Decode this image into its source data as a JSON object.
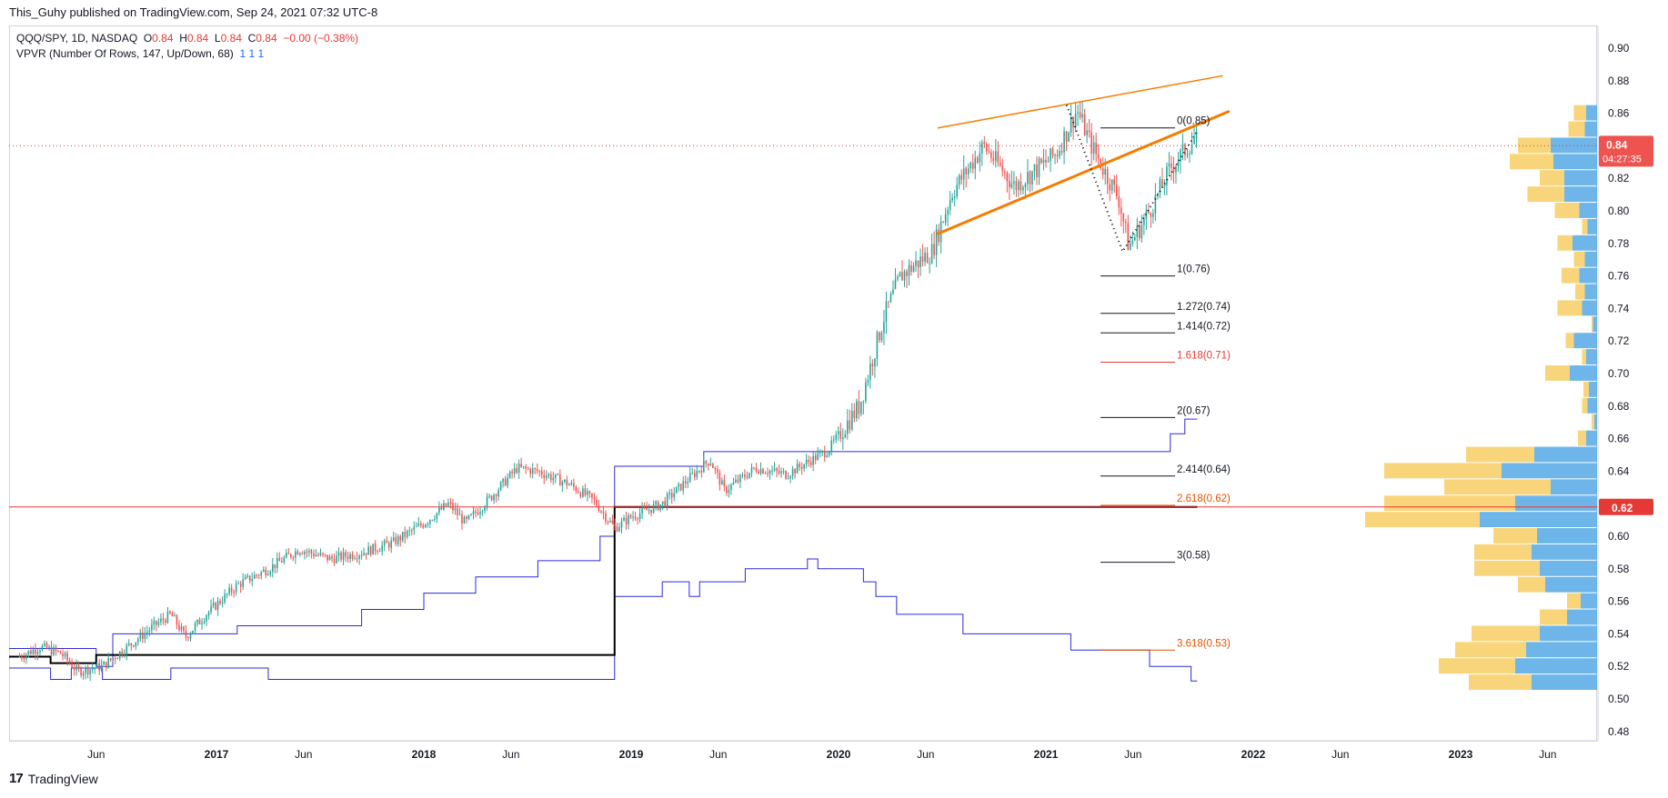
{
  "header": {
    "published": "This_Guhy published on TradingView.com, Sep 24, 2021 07:32 UTC-8"
  },
  "legend": {
    "symbol": "QQQ/SPY, 1D, NASDAQ",
    "o_label": "O",
    "o": "0.84",
    "h_label": "H",
    "h": "0.84",
    "l_label": "L",
    "l": "0.84",
    "c_label": "C",
    "c": "0.84",
    "change": "−0.00 (−0.38%)",
    "indicator": "VPVR (Number Of Rows, 147, Up/Down, 68)",
    "ind_values": "1  1  1"
  },
  "footer": {
    "logo": "17",
    "brand": "TradingView"
  },
  "colors": {
    "up": "#26a69a",
    "down": "#ef5350",
    "vol_up": "#5eaee8",
    "vol_down": "#f7d06c",
    "trend": "#f57c00",
    "stepline": "#2b2bd9",
    "hline": "#e53935"
  },
  "chart_data": {
    "type": "line",
    "symbol": "QQQ/SPY",
    "ylim": [
      0.47,
      0.91
    ],
    "y_ticks": [
      "0.90",
      "0.88",
      "0.86",
      "0.84",
      "0.82",
      "0.80",
      "0.78",
      "0.76",
      "0.74",
      "0.72",
      "0.70",
      "0.68",
      "0.66",
      "0.64",
      "0.62",
      "0.60",
      "0.58",
      "0.56",
      "0.54",
      "0.52",
      "0.50",
      "0.48"
    ],
    "x_ticks": [
      {
        "label": "Jun",
        "t": 2016.42
      },
      {
        "label": "2017",
        "t": 2017.0
      },
      {
        "label": "Jun",
        "t": 2017.42
      },
      {
        "label": "2018",
        "t": 2018.0
      },
      {
        "label": "Jun",
        "t": 2018.42
      },
      {
        "label": "2019",
        "t": 2019.0
      },
      {
        "label": "Jun",
        "t": 2019.42
      },
      {
        "label": "2020",
        "t": 2020.0
      },
      {
        "label": "Jun",
        "t": 2020.42
      },
      {
        "label": "2021",
        "t": 2021.0
      },
      {
        "label": "Jun",
        "t": 2021.42
      },
      {
        "label": "2022",
        "t": 2022.0
      },
      {
        "label": "Jun",
        "t": 2022.42
      },
      {
        "label": "2023",
        "t": 2023.0
      },
      {
        "label": "Jun",
        "t": 2023.42
      }
    ],
    "price_path": [
      [
        2016.05,
        0.526
      ],
      [
        2016.15,
        0.532
      ],
      [
        2016.25,
        0.528
      ],
      [
        2016.33,
        0.517
      ],
      [
        2016.45,
        0.52
      ],
      [
        2016.55,
        0.53
      ],
      [
        2016.7,
        0.545
      ],
      [
        2016.78,
        0.552
      ],
      [
        2016.85,
        0.538
      ],
      [
        2016.95,
        0.552
      ],
      [
        2017.1,
        0.57
      ],
      [
        2017.25,
        0.58
      ],
      [
        2017.4,
        0.592
      ],
      [
        2017.55,
        0.586
      ],
      [
        2017.7,
        0.59
      ],
      [
        2017.85,
        0.596
      ],
      [
        2018.0,
        0.608
      ],
      [
        2018.12,
        0.62
      ],
      [
        2018.2,
        0.608
      ],
      [
        2018.33,
        0.625
      ],
      [
        2018.45,
        0.642
      ],
      [
        2018.55,
        0.64
      ],
      [
        2018.7,
        0.632
      ],
      [
        2018.82,
        0.622
      ],
      [
        2018.92,
        0.605
      ],
      [
        2019.0,
        0.612
      ],
      [
        2019.15,
        0.62
      ],
      [
        2019.3,
        0.638
      ],
      [
        2019.38,
        0.647
      ],
      [
        2019.45,
        0.628
      ],
      [
        2019.6,
        0.642
      ],
      [
        2019.75,
        0.638
      ],
      [
        2019.95,
        0.653
      ],
      [
        2020.1,
        0.68
      ],
      [
        2020.22,
        0.735
      ],
      [
        2020.3,
        0.76
      ],
      [
        2020.45,
        0.775
      ],
      [
        2020.55,
        0.812
      ],
      [
        2020.7,
        0.84
      ],
      [
        2020.85,
        0.815
      ],
      [
        2021.05,
        0.835
      ],
      [
        2021.15,
        0.862
      ],
      [
        2021.22,
        0.84
      ],
      [
        2021.35,
        0.808
      ],
      [
        2021.4,
        0.778
      ],
      [
        2021.5,
        0.8
      ],
      [
        2021.6,
        0.826
      ],
      [
        2021.72,
        0.845
      ],
      [
        2021.73,
        0.842
      ]
    ],
    "trendlines": [
      {
        "name": "upper",
        "from": [
          2020.48,
          0.851
        ],
        "to": [
          2021.85,
          0.883
        ],
        "width": 1.5
      },
      {
        "name": "lower",
        "from": [
          2020.48,
          0.786
        ],
        "to": [
          2021.88,
          0.861
        ],
        "width": 3
      }
    ],
    "zigzag": [
      [
        2021.1,
        0.865
      ],
      [
        2021.37,
        0.775
      ],
      [
        2021.73,
        0.849
      ]
    ],
    "horizontal_line": {
      "value": 0.618,
      "label": "0.62"
    },
    "last_price": {
      "value": 0.84,
      "label": "0.84",
      "countdown": "04:27:35"
    },
    "fib_levels": [
      {
        "label": "0(0.85)",
        "value": 0.851,
        "color": "#131722"
      },
      {
        "label": "1(0.76)",
        "value": 0.76,
        "color": "#131722"
      },
      {
        "label": "1.272(0.74)",
        "value": 0.737,
        "color": "#131722"
      },
      {
        "label": "1.414(0.72)",
        "value": 0.725,
        "color": "#131722"
      },
      {
        "label": "1.618(0.71)",
        "value": 0.707,
        "color": "#e53935"
      },
      {
        "label": "2(0.67)",
        "value": 0.673,
        "color": "#131722"
      },
      {
        "label": "2.414(0.64)",
        "value": 0.637,
        "color": "#131722"
      },
      {
        "label": "2.618(0.62)",
        "value": 0.619,
        "color": "#e65100"
      },
      {
        "label": "3(0.58)",
        "value": 0.584,
        "color": "#131722"
      },
      {
        "label": "3.618(0.53)",
        "value": 0.53,
        "color": "#e65100"
      }
    ],
    "black_step": [
      [
        2016.0,
        0.526
      ],
      [
        2016.2,
        0.526
      ],
      [
        2016.2,
        0.522
      ],
      [
        2016.42,
        0.522
      ],
      [
        2016.42,
        0.527
      ],
      [
        2018.92,
        0.527
      ],
      [
        2018.92,
        0.618
      ],
      [
        2021.73,
        0.618
      ]
    ],
    "blue_step_upper": [
      [
        2016.0,
        0.531
      ],
      [
        2016.42,
        0.531
      ],
      [
        2016.42,
        0.52
      ],
      [
        2016.5,
        0.52
      ],
      [
        2016.5,
        0.54
      ],
      [
        2017.1,
        0.54
      ],
      [
        2017.1,
        0.545
      ],
      [
        2017.7,
        0.545
      ],
      [
        2017.7,
        0.555
      ],
      [
        2018.0,
        0.555
      ],
      [
        2018.0,
        0.565
      ],
      [
        2018.25,
        0.565
      ],
      [
        2018.25,
        0.575
      ],
      [
        2018.55,
        0.575
      ],
      [
        2018.55,
        0.585
      ],
      [
        2018.85,
        0.585
      ],
      [
        2018.85,
        0.6
      ],
      [
        2018.92,
        0.6
      ],
      [
        2018.92,
        0.643
      ],
      [
        2019.35,
        0.643
      ],
      [
        2019.35,
        0.652
      ],
      [
        2020.6,
        0.652
      ],
      [
        2021.55,
        0.652
      ],
      [
        2021.6,
        0.652
      ],
      [
        2021.6,
        0.663
      ],
      [
        2021.67,
        0.663
      ],
      [
        2021.67,
        0.672
      ],
      [
        2021.73,
        0.672
      ]
    ],
    "blue_step_lower": [
      [
        2016.0,
        0.519
      ],
      [
        2016.2,
        0.519
      ],
      [
        2016.2,
        0.512
      ],
      [
        2016.3,
        0.512
      ],
      [
        2016.3,
        0.519
      ],
      [
        2016.45,
        0.519
      ],
      [
        2016.45,
        0.512
      ],
      [
        2016.78,
        0.512
      ],
      [
        2016.78,
        0.519
      ],
      [
        2017.25,
        0.519
      ],
      [
        2017.25,
        0.512
      ],
      [
        2018.92,
        0.512
      ],
      [
        2018.92,
        0.563
      ],
      [
        2019.15,
        0.563
      ],
      [
        2019.15,
        0.572
      ],
      [
        2019.28,
        0.572
      ],
      [
        2019.28,
        0.563
      ],
      [
        2019.33,
        0.563
      ],
      [
        2019.33,
        0.572
      ],
      [
        2019.55,
        0.572
      ],
      [
        2019.55,
        0.58
      ],
      [
        2019.85,
        0.58
      ],
      [
        2019.85,
        0.586
      ],
      [
        2019.9,
        0.586
      ],
      [
        2019.9,
        0.58
      ],
      [
        2020.12,
        0.58
      ],
      [
        2020.12,
        0.572
      ],
      [
        2020.18,
        0.572
      ],
      [
        2020.18,
        0.563
      ],
      [
        2020.28,
        0.563
      ],
      [
        2020.28,
        0.552
      ],
      [
        2020.6,
        0.552
      ],
      [
        2020.6,
        0.54
      ],
      [
        2021.12,
        0.54
      ],
      [
        2021.12,
        0.53
      ],
      [
        2021.5,
        0.53
      ],
      [
        2021.5,
        0.52
      ],
      [
        2021.7,
        0.52
      ],
      [
        2021.7,
        0.511
      ],
      [
        2021.73,
        0.511
      ]
    ],
    "volume_profile": [
      {
        "y": 0.86,
        "up": 0.4,
        "down": 0.45
      },
      {
        "y": 0.85,
        "up": 0.45,
        "down": 0.6
      },
      {
        "y": 0.84,
        "up": 1.7,
        "down": 1.2
      },
      {
        "y": 0.83,
        "up": 1.6,
        "down": 1.6
      },
      {
        "y": 0.82,
        "up": 1.2,
        "down": 0.9
      },
      {
        "y": 0.81,
        "up": 1.2,
        "down": 1.35
      },
      {
        "y": 0.8,
        "up": 0.65,
        "down": 0.9
      },
      {
        "y": 0.79,
        "up": 0.35,
        "down": 0.2
      },
      {
        "y": 0.78,
        "up": 0.9,
        "down": 0.55
      },
      {
        "y": 0.77,
        "up": 0.45,
        "down": 0.4
      },
      {
        "y": 0.76,
        "up": 0.65,
        "down": 0.65
      },
      {
        "y": 0.75,
        "up": 0.45,
        "down": 0.35
      },
      {
        "y": 0.74,
        "up": 0.55,
        "down": 0.9
      },
      {
        "y": 0.73,
        "up": 0.15,
        "down": 0.05
      },
      {
        "y": 0.72,
        "up": 0.85,
        "down": 0.3
      },
      {
        "y": 0.71,
        "up": 0.4,
        "down": 0.15
      },
      {
        "y": 0.7,
        "up": 1.0,
        "down": 0.9
      },
      {
        "y": 0.69,
        "up": 0.3,
        "down": 0.2
      },
      {
        "y": 0.68,
        "up": 0.35,
        "down": 0.2
      },
      {
        "y": 0.67,
        "up": 0.1,
        "down": 0.1
      },
      {
        "y": 0.66,
        "up": 0.4,
        "down": 0.3
      },
      {
        "y": 0.65,
        "up": 2.3,
        "down": 2.5
      },
      {
        "y": 0.64,
        "up": 3.5,
        "down": 4.3
      },
      {
        "y": 0.63,
        "up": 1.7,
        "down": 3.9
      },
      {
        "y": 0.62,
        "up": 3.0,
        "down": 4.8
      },
      {
        "y": 0.61,
        "up": 4.3,
        "down": 4.2
      },
      {
        "y": 0.6,
        "up": 2.2,
        "down": 1.6
      },
      {
        "y": 0.59,
        "up": 2.4,
        "down": 2.1
      },
      {
        "y": 0.58,
        "up": 2.1,
        "down": 2.4
      },
      {
        "y": 0.57,
        "up": 1.9,
        "down": 1.0
      },
      {
        "y": 0.56,
        "up": 0.6,
        "down": 0.5
      },
      {
        "y": 0.55,
        "up": 1.1,
        "down": 1.0
      },
      {
        "y": 0.54,
        "up": 2.1,
        "down": 2.5
      },
      {
        "y": 0.53,
        "up": 2.6,
        "down": 2.6
      },
      {
        "y": 0.52,
        "up": 3.0,
        "down": 2.8
      },
      {
        "y": 0.51,
        "up": 2.4,
        "down": 2.3
      }
    ]
  }
}
